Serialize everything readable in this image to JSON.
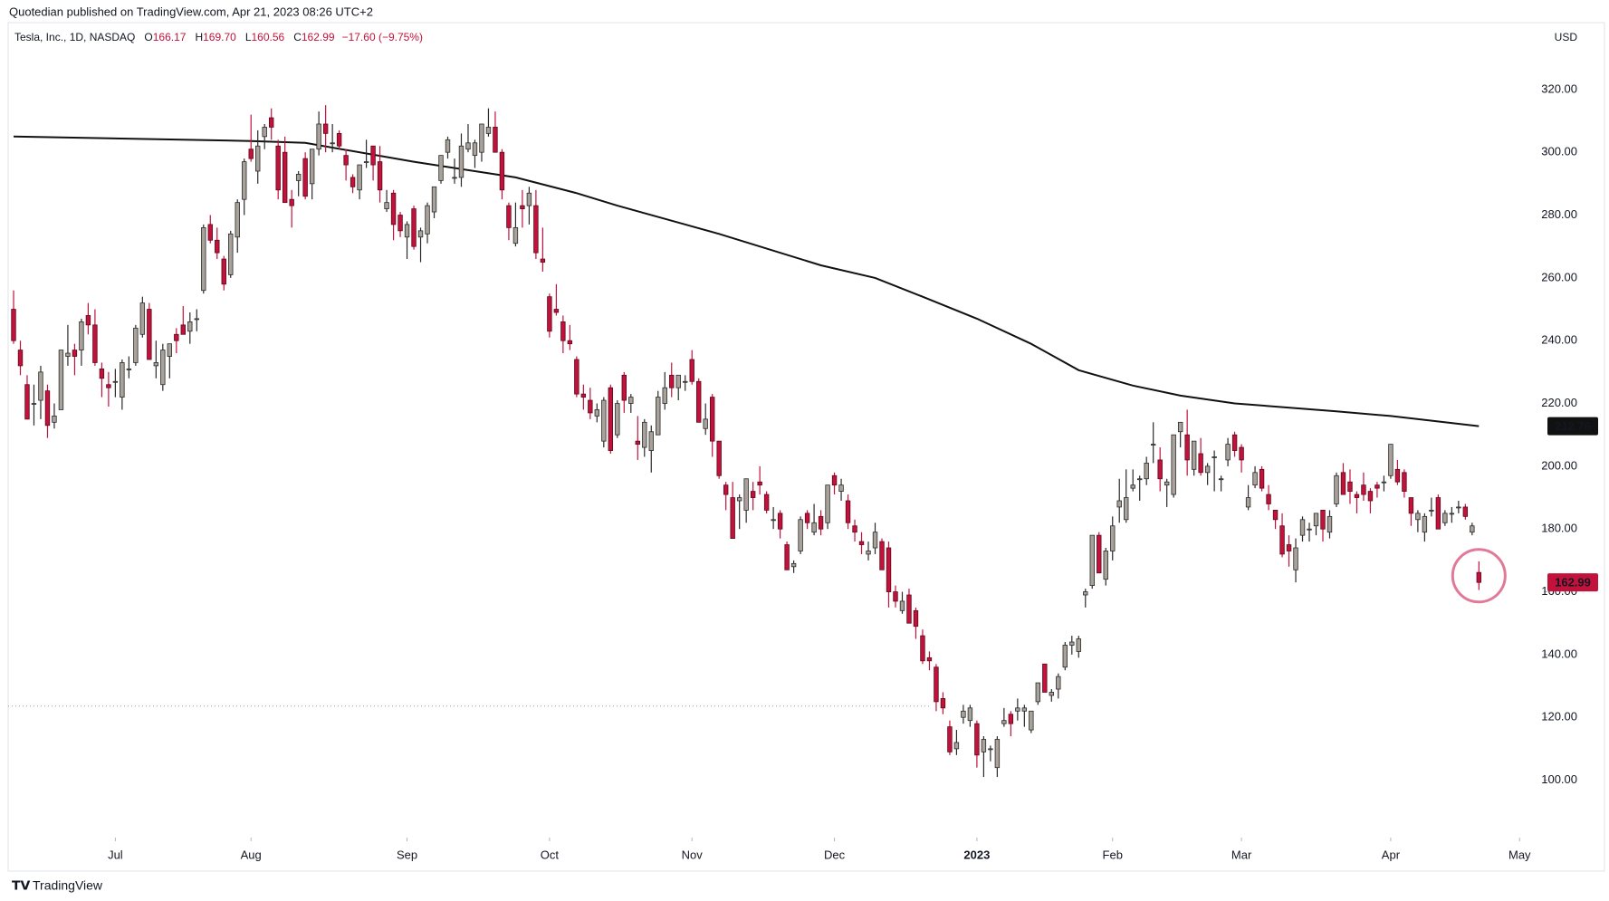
{
  "header": {
    "publisher": "Quotedian published on TradingView.com, Apr 21, 2023 08:26 UTC+2",
    "symbol": "Tesla, Inc., 1D, NASDAQ",
    "quote": [
      {
        "key": "O",
        "value": "166.17"
      },
      {
        "key": "H",
        "value": "169.70"
      },
      {
        "key": "L",
        "value": "160.56"
      },
      {
        "key": "C",
        "value": "162.99"
      }
    ],
    "change": "−17.60 (−9.75%)"
  },
  "footer": {
    "brand": "TradingView"
  },
  "chart_data": {
    "type": "candlestick",
    "currency": "USD",
    "up_color": "#a8a29b",
    "down_color": "#c2123c",
    "ma_color": "#111111",
    "xlim": [
      -0.8,
      225.3
    ],
    "ylim": [
      81.7,
      341.3
    ],
    "xticks": [
      {
        "value": 15,
        "label": "Jul"
      },
      {
        "value": 35,
        "label": "Aug"
      },
      {
        "value": 58,
        "label": "Sep"
      },
      {
        "value": 79,
        "label": "Oct"
      },
      {
        "value": 100,
        "label": "Nov"
      },
      {
        "value": 121,
        "label": "Dec"
      },
      {
        "value": 142,
        "label": "2023"
      },
      {
        "value": 162,
        "label": "Feb"
      },
      {
        "value": 181,
        "label": "Mar"
      },
      {
        "value": 203,
        "label": "Apr"
      },
      {
        "value": 222,
        "label": "May"
      }
    ],
    "yticks": [
      {
        "value": 100,
        "label": "100.00"
      },
      {
        "value": 120,
        "label": "120.00"
      },
      {
        "value": 140,
        "label": "140.00"
      },
      {
        "value": 160,
        "label": "160.00"
      },
      {
        "value": 180,
        "label": "180.00"
      },
      {
        "value": 200,
        "label": "200.00"
      },
      {
        "value": 220,
        "label": "220.00"
      },
      {
        "value": 240,
        "label": "240.00"
      },
      {
        "value": 260,
        "label": "260.00"
      },
      {
        "value": 280,
        "label": "280.00"
      },
      {
        "value": 300,
        "label": "300.00"
      },
      {
        "value": 320,
        "label": "320.00"
      }
    ],
    "hline": 123.6,
    "ohlc": [
      [
        250,
        256,
        239,
        240
      ],
      [
        237,
        240,
        229,
        232
      ],
      [
        226,
        229,
        215,
        215
      ],
      [
        220,
        226,
        213,
        220
      ],
      [
        221,
        232,
        215,
        230
      ],
      [
        224,
        226,
        209,
        213
      ],
      [
        214,
        220,
        212,
        216
      ],
      [
        218,
        237,
        218,
        237
      ],
      [
        235,
        245,
        232,
        236
      ],
      [
        237,
        239,
        229,
        235
      ],
      [
        237,
        247,
        232,
        246
      ],
      [
        248,
        252,
        242,
        245
      ],
      [
        245,
        250,
        232,
        233
      ],
      [
        231,
        233,
        222,
        228
      ],
      [
        226,
        230,
        219,
        225
      ],
      [
        227,
        231,
        222,
        227
      ],
      [
        222,
        234,
        218,
        233
      ],
      [
        231,
        235,
        228,
        231
      ],
      [
        233,
        245,
        232,
        244
      ],
      [
        242,
        254,
        241,
        252
      ],
      [
        250,
        252,
        234,
        234
      ],
      [
        232,
        240,
        228,
        233
      ],
      [
        226,
        239,
        224,
        237
      ],
      [
        235,
        239,
        228,
        239
      ],
      [
        242,
        244,
        236,
        240
      ],
      [
        245,
        251,
        242,
        242
      ],
      [
        243,
        249,
        239,
        246
      ],
      [
        247,
        250,
        243,
        247
      ],
      [
        256,
        277,
        255,
        276
      ],
      [
        277,
        280,
        271,
        272
      ],
      [
        272,
        276,
        266,
        268
      ],
      [
        266,
        267,
        256,
        258
      ],
      [
        261,
        275,
        260,
        274
      ],
      [
        273,
        285,
        268,
        284
      ],
      [
        285,
        298,
        280,
        297
      ],
      [
        301,
        312,
        297,
        298
      ],
      [
        294,
        307,
        290,
        302
      ],
      [
        305,
        309,
        301,
        308
      ],
      [
        311,
        314,
        304,
        308
      ],
      [
        302,
        304,
        285,
        288
      ],
      [
        300,
        305,
        284,
        284
      ],
      [
        285,
        288,
        276,
        283
      ],
      [
        291,
        294,
        286,
        293
      ],
      [
        298,
        300,
        285,
        286
      ],
      [
        290,
        301,
        285,
        301
      ],
      [
        301,
        313,
        299,
        309
      ],
      [
        309,
        315,
        300,
        306
      ],
      [
        303,
        309,
        300,
        303
      ],
      [
        306,
        307,
        301,
        302
      ],
      [
        299,
        301,
        291,
        296
      ],
      [
        292,
        293,
        287,
        289
      ],
      [
        288,
        296,
        285,
        296
      ],
      [
        297,
        304,
        295,
        297
      ],
      [
        302,
        302,
        291,
        296
      ],
      [
        297,
        302,
        284,
        288
      ],
      [
        282,
        288,
        281,
        284
      ],
      [
        287,
        288,
        272,
        277
      ],
      [
        280,
        281,
        273,
        275
      ],
      [
        273,
        278,
        266,
        277
      ],
      [
        282,
        283,
        269,
        270
      ],
      [
        273,
        276,
        265,
        275
      ],
      [
        274,
        284,
        271,
        283
      ],
      [
        281,
        289,
        279,
        289
      ],
      [
        291,
        299,
        290,
        299
      ],
      [
        300,
        305,
        298,
        304
      ],
      [
        292,
        298,
        290,
        292
      ],
      [
        292,
        306,
        289,
        302
      ],
      [
        301,
        309,
        300,
        303
      ],
      [
        299,
        304,
        295,
        303
      ],
      [
        300,
        309,
        297,
        309
      ],
      [
        306,
        314,
        305,
        308
      ],
      [
        308,
        313,
        300,
        300
      ],
      [
        300,
        301,
        285,
        288
      ],
      [
        283,
        284,
        272,
        276
      ],
      [
        271,
        284,
        270,
        276
      ],
      [
        283,
        288,
        276,
        282
      ],
      [
        283,
        289,
        277,
        287
      ],
      [
        283,
        288,
        266,
        268
      ],
      [
        266,
        276,
        262,
        265
      ],
      [
        254,
        255,
        241,
        243
      ],
      [
        250,
        258,
        248,
        249
      ],
      [
        246,
        248,
        236,
        240
      ],
      [
        240,
        245,
        237,
        239
      ],
      [
        234,
        235,
        222,
        223
      ],
      [
        223,
        226,
        218,
        222
      ],
      [
        221,
        225,
        215,
        217
      ],
      [
        216,
        220,
        214,
        218
      ],
      [
        208,
        222,
        206,
        221
      ],
      [
        225,
        226,
        204,
        205
      ],
      [
        210,
        221,
        209,
        220
      ],
      [
        229,
        230,
        217,
        221
      ],
      [
        220,
        223,
        217,
        222
      ],
      [
        208,
        216,
        202,
        207
      ],
      [
        206,
        215,
        203,
        214
      ],
      [
        205,
        213,
        198,
        211
      ],
      [
        210,
        224,
        210,
        222
      ],
      [
        220,
        230,
        218,
        225
      ],
      [
        229,
        233,
        222,
        225
      ],
      [
        225,
        229,
        221,
        229
      ],
      [
        227,
        229,
        224,
        227
      ],
      [
        234,
        237,
        226,
        227
      ],
      [
        227,
        228,
        214,
        214
      ],
      [
        212,
        220,
        210,
        215
      ],
      [
        222,
        223,
        203,
        208
      ],
      [
        208,
        208,
        196,
        197
      ],
      [
        194,
        195,
        186,
        191
      ],
      [
        190,
        195,
        177,
        177
      ],
      [
        189,
        191,
        180,
        190
      ],
      [
        186,
        196,
        182,
        196
      ],
      [
        192,
        195,
        186,
        190
      ],
      [
        195,
        200,
        191,
        194
      ],
      [
        191,
        192,
        185,
        186
      ],
      [
        183,
        187,
        180,
        183
      ],
      [
        185,
        186,
        177,
        180
      ],
      [
        175,
        176,
        167,
        167
      ],
      [
        168,
        170,
        166,
        169
      ],
      [
        173,
        184,
        172,
        183
      ],
      [
        185,
        186,
        180,
        182
      ],
      [
        179,
        188,
        178,
        182
      ],
      [
        184,
        186,
        178,
        180
      ],
      [
        182,
        194,
        180,
        194
      ],
      [
        197,
        198,
        191,
        194
      ],
      [
        192,
        196,
        189,
        194
      ],
      [
        189,
        191,
        180,
        182
      ],
      [
        181,
        183,
        176,
        179
      ],
      [
        176,
        179,
        172,
        175
      ],
      [
        172,
        176,
        170,
        173
      ],
      [
        174,
        182,
        172,
        179
      ],
      [
        176,
        177,
        167,
        167
      ],
      [
        174,
        176,
        155,
        160
      ],
      [
        160,
        162,
        155,
        157
      ],
      [
        154,
        160,
        153,
        157
      ],
      [
        159,
        161,
        150,
        150
      ],
      [
        154,
        155,
        145,
        149
      ],
      [
        146,
        148,
        137,
        138
      ],
      [
        139,
        141,
        135,
        138
      ],
      [
        136,
        137,
        122,
        125
      ],
      [
        126,
        128,
        121,
        123
      ],
      [
        117,
        119,
        108,
        109
      ],
      [
        110,
        116,
        108,
        112
      ],
      [
        120,
        124,
        118,
        122
      ],
      [
        119,
        124,
        117,
        123
      ],
      [
        118,
        119,
        104,
        108
      ],
      [
        109,
        114,
        101,
        113
      ],
      [
        110,
        111,
        106,
        110
      ],
      [
        104,
        114,
        101,
        113
      ],
      [
        118,
        123,
        117,
        119
      ],
      [
        121,
        122,
        114,
        118
      ],
      [
        122,
        126,
        119,
        123
      ],
      [
        122,
        124,
        117,
        123
      ],
      [
        116,
        122,
        115,
        122
      ],
      [
        125,
        131,
        124,
        131
      ],
      [
        137,
        137,
        128,
        128
      ],
      [
        127,
        129,
        125,
        128
      ],
      [
        129,
        134,
        126,
        133
      ],
      [
        136,
        144,
        135,
        143
      ],
      [
        143,
        146,
        140,
        144
      ],
      [
        141,
        146,
        139,
        145
      ],
      [
        159,
        161,
        155,
        160
      ],
      [
        162,
        178,
        161,
        178
      ],
      [
        178,
        179,
        166,
        166
      ],
      [
        164,
        174,
        162,
        173
      ],
      [
        173,
        184,
        170,
        181
      ],
      [
        187,
        196,
        182,
        189
      ],
      [
        183,
        199,
        182,
        190
      ],
      [
        193,
        199,
        192,
        194
      ],
      [
        196,
        197,
        189,
        196
      ],
      [
        196,
        203,
        194,
        201
      ],
      [
        207,
        214,
        201,
        207
      ],
      [
        202,
        206,
        192,
        196
      ],
      [
        194,
        196,
        187,
        195
      ],
      [
        191,
        210,
        190,
        210
      ],
      [
        211,
        214,
        206,
        214
      ],
      [
        210,
        218,
        197,
        202
      ],
      [
        199,
        208,
        197,
        208
      ],
      [
        204,
        209,
        197,
        198
      ],
      [
        198,
        201,
        194,
        200
      ],
      [
        203,
        205,
        192,
        203
      ],
      [
        196,
        197,
        192,
        196
      ],
      [
        202,
        209,
        200,
        207
      ],
      [
        210,
        211,
        203,
        205
      ],
      [
        206,
        207,
        198,
        202
      ],
      [
        187,
        194,
        186,
        190
      ],
      [
        194,
        200,
        193,
        198
      ],
      [
        199,
        200,
        192,
        193
      ],
      [
        191,
        194,
        186,
        188
      ],
      [
        186,
        186,
        180,
        183
      ],
      [
        181,
        185,
        171,
        172
      ],
      [
        175,
        178,
        168,
        173
      ],
      [
        167,
        177,
        163,
        174
      ],
      [
        178,
        184,
        176,
        183
      ],
      [
        180,
        182,
        176,
        180
      ],
      [
        181,
        185,
        178,
        185
      ],
      [
        186,
        186,
        176,
        180
      ],
      [
        179,
        186,
        177,
        184
      ],
      [
        188,
        198,
        187,
        197
      ],
      [
        198,
        201,
        191,
        191
      ],
      [
        195,
        199,
        188,
        192
      ],
      [
        191,
        192,
        185,
        190
      ],
      [
        194,
        198,
        189,
        191
      ],
      [
        192,
        193,
        185,
        189
      ],
      [
        194,
        195,
        190,
        193
      ],
      [
        195,
        197,
        192,
        195
      ],
      [
        197,
        207,
        196,
        207
      ],
      [
        199,
        202,
        194,
        195
      ],
      [
        198,
        199,
        190,
        192
      ],
      [
        190,
        190,
        181,
        185
      ],
      [
        183,
        186,
        179,
        185
      ],
      [
        179,
        185,
        176,
        184
      ],
      [
        186,
        190,
        184,
        186
      ],
      [
        190,
        191,
        180,
        180
      ],
      [
        182,
        186,
        181,
        185
      ],
      [
        185,
        187,
        182,
        185
      ],
      [
        187,
        189,
        185,
        187
      ],
      [
        187,
        188,
        183,
        184
      ],
      [
        179,
        182,
        178,
        181
      ],
      [
        166.17,
        169.7,
        160.56,
        162.99
      ]
    ],
    "ma": {
      "x": [
        0,
        35,
        43,
        59,
        74,
        83,
        89,
        104,
        119,
        127,
        134,
        142,
        150,
        157,
        165,
        172,
        180,
        195,
        203,
        216
      ],
      "values": [
        305,
        303.6,
        303,
        297,
        292,
        287,
        283,
        274,
        264,
        260,
        254,
        247,
        239,
        230.6,
        225.7,
        222.5,
        220,
        217.5,
        216,
        212.76
      ],
      "last": {
        "value": 212.76,
        "label": "212.76"
      }
    },
    "last_price": {
      "value": 162.99,
      "label": "162.99"
    }
  }
}
